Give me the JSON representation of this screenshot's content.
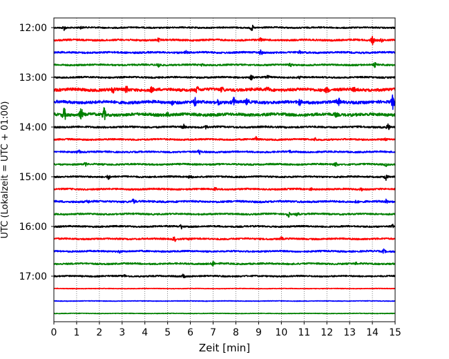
{
  "chart_data": {
    "type": "line",
    "title": "",
    "xlabel": "Zeit  [min]",
    "ylabel": "UTC (Lokalzeit = UTC + 01:00)",
    "xlim": [
      0,
      15
    ],
    "x_ticks": [
      "0",
      "1",
      "2",
      "3",
      "4",
      "5",
      "6",
      "7",
      "8",
      "9",
      "10",
      "11",
      "12",
      "13",
      "14",
      "15"
    ],
    "y_ticks": [
      "12:00",
      "13:00",
      "14:00",
      "15:00",
      "16:00",
      "17:00"
    ],
    "grid": "vertical dotted",
    "colors": [
      "#000000",
      "#ff0000",
      "#0000ff",
      "#008000"
    ],
    "series": [
      {
        "time": "12:00",
        "color": "#000000",
        "amp": 1.0,
        "events": [
          [
            0.45,
            3
          ],
          [
            1.2,
            1.5
          ],
          [
            8.7,
            4
          ]
        ]
      },
      {
        "time": "12:15",
        "color": "#ff0000",
        "amp": 1.2,
        "events": [
          [
            4.6,
            2
          ],
          [
            9.1,
            2
          ],
          [
            14.0,
            6
          ],
          [
            14.4,
            2
          ]
        ]
      },
      {
        "time": "12:30",
        "color": "#0000ff",
        "amp": 1.2,
        "events": [
          [
            5.8,
            2
          ],
          [
            9.1,
            3
          ],
          [
            10.8,
            1.5
          ]
        ]
      },
      {
        "time": "12:45",
        "color": "#008000",
        "amp": 1.1,
        "events": [
          [
            4.6,
            4
          ],
          [
            6.5,
            1.5
          ],
          [
            10.4,
            2
          ],
          [
            14.1,
            3
          ]
        ]
      },
      {
        "time": "13:00",
        "color": "#000000",
        "amp": 1.1,
        "events": [
          [
            8.7,
            4
          ],
          [
            9.4,
            2
          ],
          [
            10.8,
            1.5
          ]
        ]
      },
      {
        "time": "13:15",
        "color": "#ff0000",
        "amp": 2.0,
        "events": [
          [
            2.6,
            4
          ],
          [
            3.2,
            5
          ],
          [
            4.3,
            3
          ],
          [
            6.3,
            4
          ],
          [
            7.4,
            3
          ],
          [
            9.4,
            3
          ],
          [
            12.0,
            3
          ],
          [
            13.2,
            2
          ]
        ]
      },
      {
        "time": "13:30",
        "color": "#0000ff",
        "amp": 2.0,
        "events": [
          [
            5.2,
            2
          ],
          [
            6.2,
            5
          ],
          [
            7.2,
            3
          ],
          [
            7.9,
            6
          ],
          [
            8.5,
            4
          ],
          [
            10.8,
            4
          ],
          [
            12.5,
            5
          ],
          [
            14.9,
            9
          ]
        ]
      },
      {
        "time": "13:45",
        "color": "#008000",
        "amp": 2.0,
        "events": [
          [
            0.45,
            9
          ],
          [
            1.2,
            8
          ],
          [
            2.2,
            9
          ],
          [
            5.0,
            2
          ],
          [
            12.4,
            2
          ]
        ]
      },
      {
        "time": "14:00",
        "color": "#000000",
        "amp": 1.2,
        "events": [
          [
            5.7,
            3
          ],
          [
            6.7,
            2
          ],
          [
            14.7,
            4
          ]
        ]
      },
      {
        "time": "14:15",
        "color": "#ff0000",
        "amp": 1.1,
        "events": [
          [
            8.9,
            3
          ],
          [
            11.5,
            2
          ],
          [
            14.6,
            1.5
          ]
        ]
      },
      {
        "time": "14:30",
        "color": "#0000ff",
        "amp": 1.1,
        "events": [
          [
            1.1,
            2.5
          ],
          [
            6.4,
            3
          ],
          [
            10.4,
            1.5
          ]
        ]
      },
      {
        "time": "14:45",
        "color": "#008000",
        "amp": 1.1,
        "events": [
          [
            1.4,
            2
          ],
          [
            12.4,
            2.5
          ],
          [
            14.6,
            2
          ]
        ]
      },
      {
        "time": "15:00",
        "color": "#000000",
        "amp": 1.1,
        "events": [
          [
            2.4,
            3
          ],
          [
            6.0,
            3
          ],
          [
            14.6,
            4
          ]
        ]
      },
      {
        "time": "15:15",
        "color": "#ff0000",
        "amp": 1.1,
        "events": [
          [
            7.1,
            2.5
          ],
          [
            11.3,
            1.5
          ],
          [
            13.5,
            1.5
          ]
        ]
      },
      {
        "time": "15:30",
        "color": "#0000ff",
        "amp": 1.3,
        "events": [
          [
            1.5,
            1.5
          ],
          [
            3.5,
            3
          ],
          [
            13.3,
            1.5
          ],
          [
            14.6,
            2.5
          ]
        ]
      },
      {
        "time": "15:45",
        "color": "#008000",
        "amp": 1.1,
        "events": [
          [
            10.3,
            4
          ],
          [
            10.7,
            2
          ]
        ]
      },
      {
        "time": "16:00",
        "color": "#000000",
        "amp": 1.1,
        "events": [
          [
            5.6,
            3
          ],
          [
            14.9,
            2
          ]
        ]
      },
      {
        "time": "16:15",
        "color": "#ff0000",
        "amp": 1.1,
        "events": [
          [
            5.3,
            3
          ],
          [
            6.0,
            2
          ],
          [
            10.0,
            2
          ]
        ]
      },
      {
        "time": "16:30",
        "color": "#0000ff",
        "amp": 1.1,
        "events": [
          [
            2.9,
            2
          ],
          [
            14.5,
            2.5
          ]
        ]
      },
      {
        "time": "16:45",
        "color": "#008000",
        "amp": 1.1,
        "events": [
          [
            7.0,
            3.5
          ],
          [
            13.3,
            1.5
          ]
        ]
      },
      {
        "time": "17:00",
        "color": "#000000",
        "amp": 1.0,
        "events": [
          [
            3.1,
            1.5
          ],
          [
            5.7,
            3
          ]
        ]
      },
      {
        "time": "17:15",
        "color": "#ff0000",
        "amp": 0.4,
        "events": []
      },
      {
        "time": "17:30",
        "color": "#0000ff",
        "amp": 0.4,
        "events": []
      },
      {
        "time": "17:45",
        "color": "#008000",
        "amp": 0.4,
        "events": []
      }
    ]
  }
}
